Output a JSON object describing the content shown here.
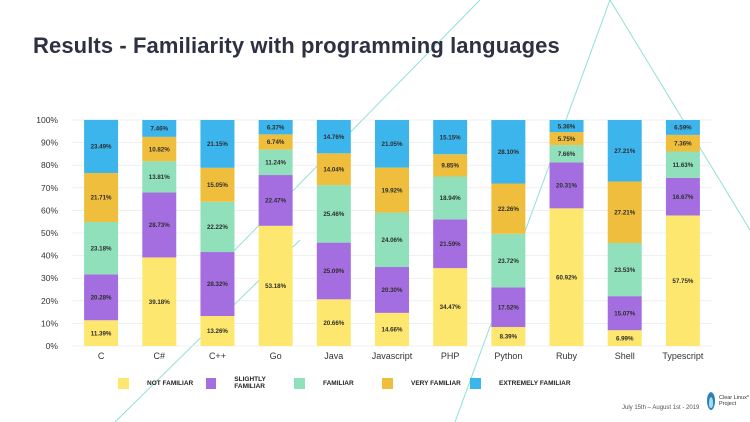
{
  "slide": {
    "title": "Results - Familiarity with programming languages",
    "footer_date": "July 15th – August 1st - 2019",
    "logo_text_line1": "Clear Linux*",
    "logo_text_line2": "Project"
  },
  "colors": {
    "not_familiar": "#fde76e",
    "slightly_familiar": "#a56ee0",
    "familiar": "#8fe0bb",
    "very_familiar": "#efbe3c",
    "extremely_familiar": "#3cb4ec",
    "decor_line": "#8fe0d8"
  },
  "chart_data": {
    "type": "bar",
    "stacked": true,
    "title": "Results - Familiarity with programming languages",
    "xlabel": "",
    "ylabel": "",
    "ylim": [
      0,
      100
    ],
    "yticks": [
      "0%",
      "10%",
      "20%",
      "30%",
      "40%",
      "50%",
      "60%",
      "70%",
      "80%",
      "90%",
      "100%"
    ],
    "categories": [
      "C",
      "C#",
      "C++",
      "Go",
      "Java",
      "Javascript",
      "PHP",
      "Python",
      "Ruby",
      "Shell",
      "Typescript"
    ],
    "series": [
      {
        "name": "NOT FAMILIAR",
        "color_key": "not_familiar",
        "values": [
          11.39,
          39.18,
          13.26,
          53.18,
          20.66,
          14.66,
          34.47,
          8.39,
          60.92,
          6.99,
          57.75
        ],
        "labels": [
          "11.39%",
          "39.18%",
          "13.26%",
          "53.18%",
          "20.66%",
          "14.66%",
          "34.47%",
          "8.39%",
          "60.92%",
          "6.99%",
          "57.75%"
        ]
      },
      {
        "name": "SLIGHTLY FAMILIAR",
        "color_key": "slightly_familiar",
        "values": [
          20.28,
          28.73,
          28.32,
          22.47,
          25.09,
          20.3,
          21.59,
          17.52,
          20.31,
          15.07,
          16.67
        ],
        "labels": [
          "20.28%",
          "28.73%",
          "28.32%",
          "22.47%",
          "25.09%",
          "20.30%",
          "21.59%",
          "17.52%",
          "20.31%",
          "15.07%",
          "16.67%"
        ]
      },
      {
        "name": "FAMILIAR",
        "color_key": "familiar",
        "values": [
          23.18,
          13.81,
          22.22,
          11.24,
          25.46,
          24.06,
          18.94,
          23.72,
          7.66,
          23.53,
          11.63
        ],
        "labels": [
          "23.18%",
          "13.81%",
          "22.22%",
          "11.24%",
          "25.46%",
          "24.06%",
          "18.94%",
          "23.72%",
          "7.66%",
          "23.53%",
          "11.63%"
        ]
      },
      {
        "name": "VERY FAMILIAR",
        "color_key": "very_familiar",
        "values": [
          21.71,
          10.82,
          15.05,
          6.74,
          14.04,
          19.92,
          9.85,
          22.26,
          5.75,
          27.21,
          7.36
        ],
        "labels": [
          "21.71%",
          "10.82%",
          "15.05%",
          "6.74%",
          "14.04%",
          "19.92%",
          "9.85%",
          "22.26%",
          "5.75%",
          "27.21%",
          "7.36%"
        ]
      },
      {
        "name": "EXTREMELY FAMILIAR",
        "color_key": "extremely_familiar",
        "values": [
          23.49,
          7.46,
          21.15,
          6.37,
          14.76,
          21.05,
          15.15,
          28.1,
          5.36,
          27.21,
          6.59
        ],
        "labels": [
          "23.49%",
          "7.46%",
          "21.15%",
          "6.37%",
          "14.76%",
          "21.05%",
          "15.15%",
          "28.10%",
          "5.36%",
          "27.21%",
          "6.59%"
        ]
      }
    ],
    "legend_position": "bottom"
  }
}
